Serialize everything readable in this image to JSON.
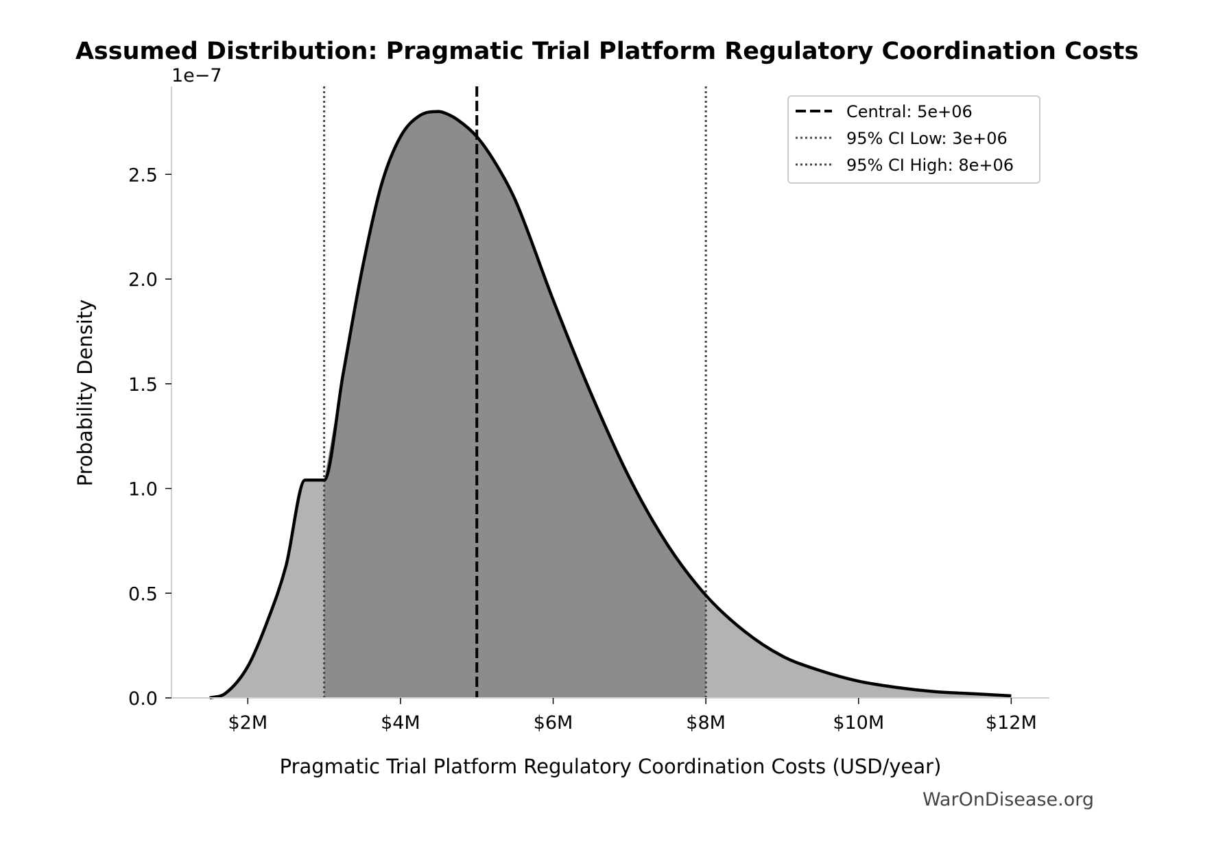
{
  "chart_data": {
    "type": "area",
    "title": "Assumed Distribution: Pragmatic Trial Platform Regulatory Coordination Costs",
    "xlabel": "Pragmatic Trial Platform Regulatory Coordination Costs (USD/year)",
    "ylabel": "Probability Density",
    "y_offset_label": "1e−7",
    "xlim": [
      1000000,
      12500000
    ],
    "ylim": [
      0,
      2.92e-07
    ],
    "x_ticks": [
      {
        "value": 2000000,
        "label": "$2M"
      },
      {
        "value": 4000000,
        "label": "$4M"
      },
      {
        "value": 6000000,
        "label": "$6M"
      },
      {
        "value": 8000000,
        "label": "$8M"
      },
      {
        "value": 10000000,
        "label": "$10M"
      },
      {
        "value": 12000000,
        "label": "$12M"
      }
    ],
    "y_ticks": [
      {
        "value": 0,
        "label": "0.0"
      },
      {
        "value": 5e-08,
        "label": "0.5"
      },
      {
        "value": 1e-07,
        "label": "1.0"
      },
      {
        "value": 1.5e-07,
        "label": "1.5"
      },
      {
        "value": 2e-07,
        "label": "2.0"
      },
      {
        "value": 2.5e-07,
        "label": "2.5"
      }
    ],
    "series": [
      {
        "x": [
          1500000,
          1700000,
          2000000,
          2250000,
          2500000,
          2750000,
          3000000,
          3250000,
          3500000,
          3750000,
          4000000,
          4250000,
          4500000,
          4600000,
          4750000,
          5000000,
          5250000,
          5500000,
          6000000,
          6500000,
          7000000,
          7500000,
          8000000,
          8500000,
          9000000,
          9500000,
          10000000,
          10500000,
          11000000,
          11500000,
          12000000
        ],
        "y": [
          0,
          2e-09,
          1.5e-08,
          3.6e-08,
          6.3e-08,
          1.04e-07,
          1.04e-07,
          1.55e-07,
          2.05e-07,
          2.45e-07,
          2.68e-07,
          2.78e-07,
          2.8e-07,
          2.79e-07,
          2.76e-07,
          2.68e-07,
          2.55e-07,
          2.38e-07,
          1.9e-07,
          1.45e-07,
          1.05e-07,
          7.3e-08,
          4.9e-08,
          3.2e-08,
          2e-08,
          1.3e-08,
          8e-09,
          5e-09,
          3e-09,
          2e-09,
          1e-09
        ]
      }
    ],
    "shaded_interval": [
      3000000,
      8000000
    ],
    "vlines": [
      {
        "label": "Central: 5e+06",
        "x": 5000000,
        "style": "dashed"
      },
      {
        "label": "95% CI Low: 3e+06",
        "x": 3000000,
        "style": "dotted"
      },
      {
        "label": "95% CI High: 8e+06",
        "x": 8000000,
        "style": "dotted"
      }
    ],
    "legend_position": "top-right",
    "grid": false,
    "colors": {
      "curve": "#000000",
      "tail_fill": "#b3b3b3",
      "ci_fill": "#8c8c8c",
      "ci_lines": "#444444"
    }
  },
  "watermark": "WarOnDisease.org"
}
